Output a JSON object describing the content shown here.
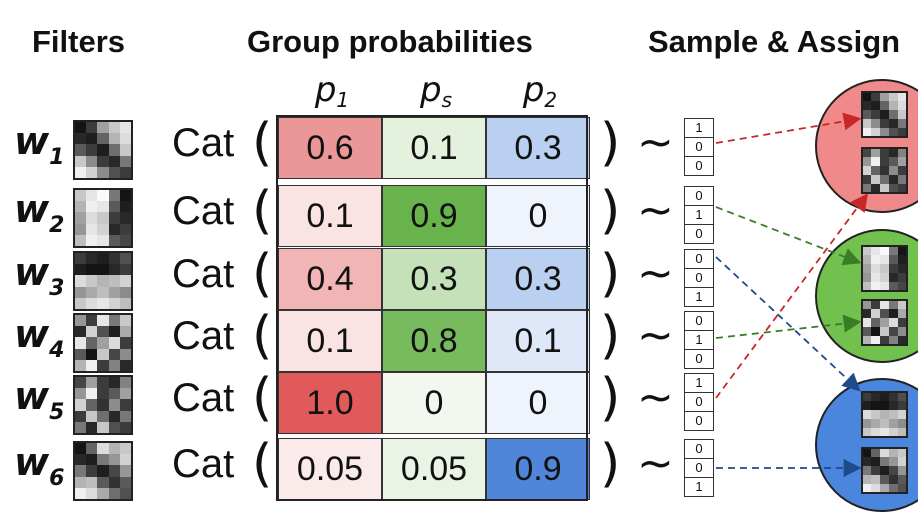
{
  "headers": {
    "filters": "Filters",
    "group_probabilities": "Group probabilities",
    "sample_assign": "Sample & Assign"
  },
  "columns": [
    {
      "base": "p",
      "sub": "1"
    },
    {
      "base": "p",
      "sub": "s"
    },
    {
      "base": "p",
      "sub": "2"
    }
  ],
  "rows": [
    {
      "w": "w",
      "i": "1",
      "cat": "Cat",
      "probs": [
        "0.6",
        "0.1",
        "0.3"
      ],
      "onehot": [
        "1",
        "0",
        "0"
      ],
      "group": "red"
    },
    {
      "w": "w",
      "i": "2",
      "cat": "Cat",
      "probs": [
        "0.1",
        "0.9",
        "0"
      ],
      "onehot": [
        "0",
        "1",
        "0"
      ],
      "group": "green"
    },
    {
      "w": "w",
      "i": "3",
      "cat": "Cat",
      "probs": [
        "0.4",
        "0.3",
        "0.3"
      ],
      "onehot": [
        "0",
        "0",
        "1"
      ],
      "group": "blue"
    },
    {
      "w": "w",
      "i": "4",
      "cat": "Cat",
      "probs": [
        "0.1",
        "0.8",
        "0.1"
      ],
      "onehot": [
        "0",
        "1",
        "0"
      ],
      "group": "green"
    },
    {
      "w": "w",
      "i": "5",
      "cat": "Cat",
      "probs": [
        "1.0",
        "0",
        "0"
      ],
      "onehot": [
        "1",
        "0",
        "0"
      ],
      "group": "red"
    },
    {
      "w": "w",
      "i": "6",
      "cat": "Cat",
      "probs": [
        "0.05",
        "0.05",
        "0.9"
      ],
      "onehot": [
        "0",
        "0",
        "1"
      ],
      "group": "blue"
    }
  ],
  "colors": {
    "red": "#e05a5a",
    "green": "#5aab3a",
    "blue": "#3d7ad6",
    "red_circle": "#f08a8a",
    "green_circle": "#72c04e",
    "blue_circle": "#4a86de",
    "arrow_red": "#c62828",
    "arrow_green": "#3a7d25",
    "arrow_blue": "#1f4a8c"
  },
  "filters": [
    [
      [
        20,
        60,
        160,
        200,
        230
      ],
      [
        40,
        30,
        100,
        180,
        220
      ],
      [
        90,
        60,
        30,
        110,
        200
      ],
      [
        200,
        140,
        60,
        40,
        120
      ],
      [
        240,
        210,
        140,
        80,
        60
      ]
    ],
    [
      [
        200,
        230,
        250,
        120,
        20
      ],
      [
        180,
        240,
        230,
        90,
        30
      ],
      [
        160,
        220,
        200,
        60,
        40
      ],
      [
        150,
        230,
        210,
        40,
        60
      ],
      [
        190,
        240,
        230,
        90,
        70
      ]
    ],
    [
      [
        60,
        40,
        30,
        50,
        80
      ],
      [
        30,
        20,
        20,
        40,
        60
      ],
      [
        220,
        200,
        180,
        190,
        210
      ],
      [
        150,
        170,
        190,
        160,
        140
      ],
      [
        200,
        220,
        230,
        210,
        190
      ]
    ],
    [
      [
        150,
        60,
        230,
        120,
        200
      ],
      [
        40,
        210,
        80,
        30,
        170
      ],
      [
        230,
        100,
        160,
        220,
        60
      ],
      [
        90,
        20,
        200,
        70,
        140
      ],
      [
        180,
        240,
        60,
        130,
        40
      ]
    ],
    [
      [
        70,
        160,
        60,
        40,
        130
      ],
      [
        150,
        240,
        60,
        90,
        160
      ],
      [
        210,
        100,
        50,
        140,
        60
      ],
      [
        60,
        200,
        110,
        40,
        120
      ],
      [
        120,
        40,
        200,
        80,
        60
      ]
    ],
    [
      [
        20,
        100,
        220,
        180,
        200
      ],
      [
        40,
        30,
        120,
        150,
        210
      ],
      [
        120,
        60,
        30,
        70,
        150
      ],
      [
        180,
        190,
        90,
        50,
        90
      ],
      [
        240,
        220,
        170,
        110,
        80
      ]
    ]
  ]
}
